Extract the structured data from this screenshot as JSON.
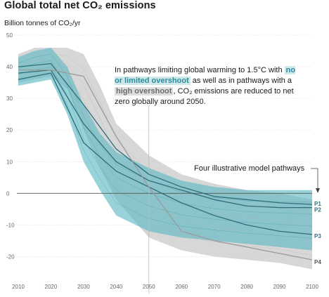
{
  "chart_data": {
    "type": "line",
    "title": "Global total net CO₂ emissions",
    "ylabel": "Billion tonnes of CO₂/yr",
    "xlabel": "",
    "xlim": [
      2010,
      2100
    ],
    "ylim": [
      -25,
      50
    ],
    "x_ticks": [
      "2010",
      "2020",
      "2030",
      "2040",
      "2050",
      "2060",
      "2070",
      "2080",
      "2090",
      "2100"
    ],
    "y_ticks": [
      "50",
      "40",
      "30",
      "20",
      "10",
      "0",
      "-10",
      "-20"
    ],
    "annotation": {
      "before_low": "In pathways limiting global warming to 1.5°C with ",
      "low_overshoot": "no or limited overshoot",
      "between": " as well as in pathways with a ",
      "high_overshoot": "high overshoot",
      "after": ", CO₂ emissions are reduced to net zero globally around 2050."
    },
    "pathways_label": "Four illustrative model pathways",
    "colors": {
      "low_overshoot_band": "#5ab8c2",
      "high_overshoot_band": "#c9c9c9",
      "pathway_teal": "#2e6e7a",
      "pathway_grey": "#9a9a9a"
    },
    "bands": [
      {
        "name": "no or limited overshoot",
        "color": "#5ab8c2",
        "x": [
          2010,
          2015,
          2020,
          2025,
          2030,
          2035,
          2040,
          2050,
          2060,
          2070,
          2080,
          2090,
          2100
        ],
        "upper": [
          43,
          45,
          46,
          40,
          28,
          19,
          13,
          8,
          4,
          2,
          1,
          1,
          1
        ],
        "lower": [
          34,
          35,
          36,
          25,
          10,
          1,
          -7,
          -12,
          -14,
          -15,
          -16,
          -17,
          -18
        ]
      },
      {
        "name": "high overshoot",
        "color": "#c9c9c9",
        "x": [
          2010,
          2015,
          2020,
          2025,
          2030,
          2035,
          2040,
          2050,
          2060,
          2070,
          2080,
          2090,
          2100
        ],
        "upper": [
          44,
          46,
          46,
          46,
          44,
          34,
          22,
          12,
          6,
          3,
          1,
          0,
          -2
        ],
        "lower": [
          35,
          36,
          37,
          33,
          20,
          8,
          -2,
          -14,
          -18,
          -20,
          -21,
          -22,
          -24
        ]
      }
    ],
    "series": [
      {
        "name": "P1",
        "x": [
          2010,
          2020,
          2030,
          2040,
          2050,
          2060,
          2070,
          2080,
          2090,
          2100
        ],
        "values": [
          40,
          41,
          28,
          14,
          6,
          2,
          -1,
          -2,
          -3,
          -3.5
        ]
      },
      {
        "name": "P2",
        "x": [
          2010,
          2020,
          2030,
          2040,
          2050,
          2060,
          2070,
          2080,
          2090,
          2100
        ],
        "values": [
          38,
          39,
          22,
          10,
          4,
          1,
          -2,
          -4,
          -4.5,
          -4.5
        ]
      },
      {
        "name": "P3",
        "x": [
          2010,
          2020,
          2030,
          2040,
          2050,
          2060,
          2070,
          2080,
          2090,
          2100
        ],
        "values": [
          36,
          38,
          16,
          7,
          2,
          -3,
          -7,
          -10,
          -12,
          -13
        ]
      },
      {
        "name": "P4",
        "x": [
          2010,
          2020,
          2030,
          2040,
          2050,
          2060,
          2070,
          2080,
          2090,
          2100
        ],
        "values": [
          39,
          39,
          37,
          18,
          2,
          -12,
          -15,
          -17,
          -19,
          -21
        ]
      }
    ],
    "vertical_marker_x": 2050
  }
}
